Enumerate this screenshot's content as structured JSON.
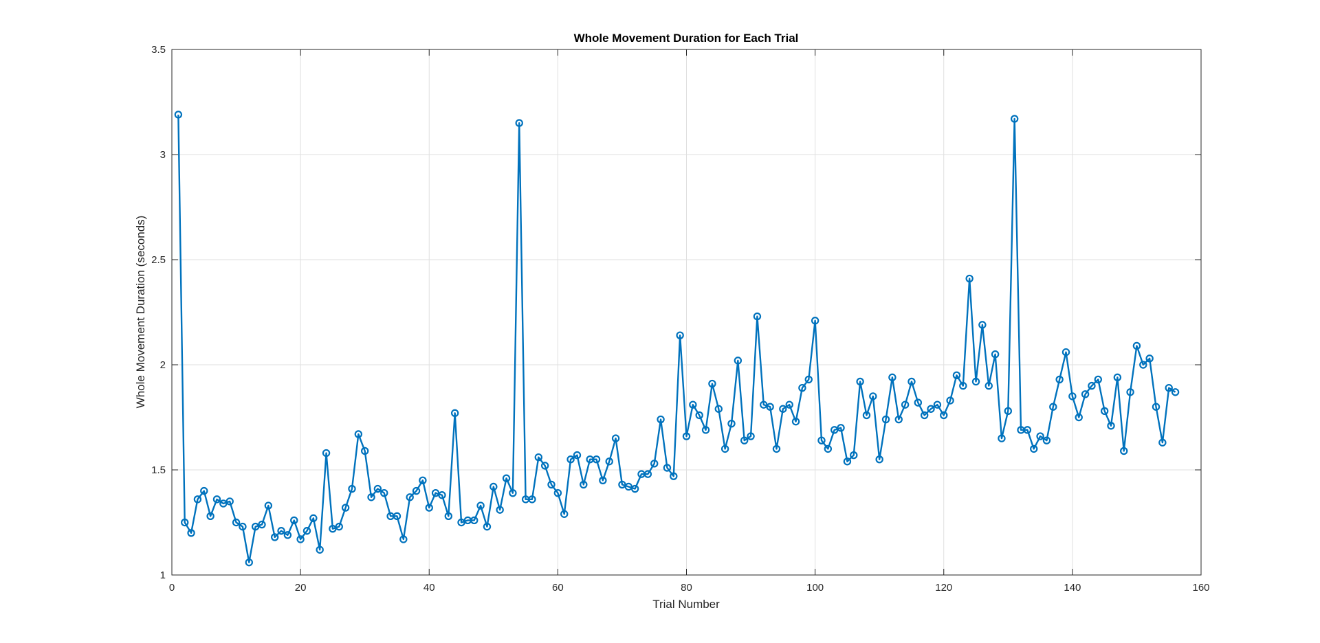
{
  "chart_data": {
    "type": "line",
    "title": "Whole Movement Duration for Each Trial",
    "xlabel": "Trial Number",
    "ylabel": "Whole Movement Duration (seconds)",
    "xlim": [
      0,
      160
    ],
    "ylim": [
      1,
      3.5
    ],
    "xticks": [
      0,
      20,
      40,
      60,
      80,
      100,
      120,
      140,
      160
    ],
    "yticks": [
      1,
      1.5,
      2,
      2.5,
      3,
      3.5
    ],
    "xtick_labels": [
      "0",
      "20",
      "40",
      "60",
      "80",
      "100",
      "120",
      "140",
      "160"
    ],
    "ytick_labels": [
      "1",
      "1.5",
      "2",
      "2.5",
      "3",
      "3.5"
    ],
    "grid": true,
    "marker": "circle",
    "color": "#0072BD",
    "x": [
      1,
      2,
      3,
      4,
      5,
      6,
      7,
      8,
      9,
      10,
      11,
      12,
      13,
      14,
      15,
      16,
      17,
      18,
      19,
      20,
      21,
      22,
      23,
      24,
      25,
      26,
      27,
      28,
      29,
      30,
      31,
      32,
      33,
      34,
      35,
      36,
      37,
      38,
      39,
      40,
      41,
      42,
      43,
      44,
      45,
      46,
      47,
      48,
      49,
      50,
      51,
      52,
      53,
      54,
      55,
      56,
      57,
      58,
      59,
      60,
      61,
      62,
      63,
      64,
      65,
      66,
      67,
      68,
      69,
      70,
      71,
      72,
      73,
      74,
      75,
      76,
      77,
      78,
      79,
      80,
      81,
      82,
      83,
      84,
      85,
      86,
      87,
      88,
      89,
      90,
      91,
      92,
      93,
      94,
      95,
      96,
      97,
      98,
      99,
      100,
      101,
      102,
      103,
      104,
      105,
      106,
      107,
      108,
      109,
      110,
      111,
      112,
      113,
      114,
      115,
      116,
      117,
      118,
      119,
      120,
      121,
      122,
      123,
      124,
      125,
      126,
      127,
      128,
      129,
      130,
      131,
      132,
      133,
      134,
      135,
      136,
      137,
      138,
      139,
      140,
      141,
      142,
      143,
      144,
      145,
      146,
      147,
      148,
      149,
      150,
      151,
      152,
      153,
      154,
      155,
      156
    ],
    "values": [
      3.19,
      1.25,
      1.2,
      1.36,
      1.4,
      1.28,
      1.36,
      1.34,
      1.35,
      1.25,
      1.23,
      1.06,
      1.23,
      1.24,
      1.33,
      1.18,
      1.21,
      1.19,
      1.26,
      1.17,
      1.21,
      1.27,
      1.12,
      1.58,
      1.22,
      1.23,
      1.32,
      1.41,
      1.67,
      1.59,
      1.37,
      1.41,
      1.39,
      1.28,
      1.28,
      1.17,
      1.37,
      1.4,
      1.45,
      1.32,
      1.39,
      1.38,
      1.28,
      1.77,
      1.25,
      1.26,
      1.26,
      1.33,
      1.23,
      1.42,
      1.31,
      1.46,
      1.39,
      3.15,
      1.36,
      1.36,
      1.56,
      1.52,
      1.43,
      1.39,
      1.29,
      1.55,
      1.57,
      1.43,
      1.55,
      1.55,
      1.45,
      1.54,
      1.65,
      1.43,
      1.42,
      1.41,
      1.48,
      1.48,
      1.53,
      1.74,
      1.51,
      1.47,
      2.14,
      1.66,
      1.81,
      1.76,
      1.69,
      1.91,
      1.79,
      1.6,
      1.72,
      2.02,
      1.64,
      1.66,
      2.23,
      1.81,
      1.8,
      1.6,
      1.79,
      1.81,
      1.73,
      1.89,
      1.93,
      2.21,
      1.64,
      1.6,
      1.69,
      1.7,
      1.54,
      1.57,
      1.92,
      1.76,
      1.85,
      1.55,
      1.74,
      1.94,
      1.74,
      1.81,
      1.92,
      1.82,
      1.76,
      1.79,
      1.81,
      1.76,
      1.83,
      1.95,
      1.9,
      2.41,
      1.92,
      2.19,
      1.9,
      2.05,
      1.65,
      1.78,
      3.17,
      1.69,
      1.69,
      1.6,
      1.66,
      1.64,
      1.8,
      1.93,
      2.06,
      1.85,
      1.75,
      1.86,
      1.9,
      1.93,
      1.78,
      1.71,
      1.94,
      1.59,
      1.87,
      2.09,
      2.0,
      2.03,
      1.8,
      1.63,
      1.89,
      1.87
    ]
  }
}
